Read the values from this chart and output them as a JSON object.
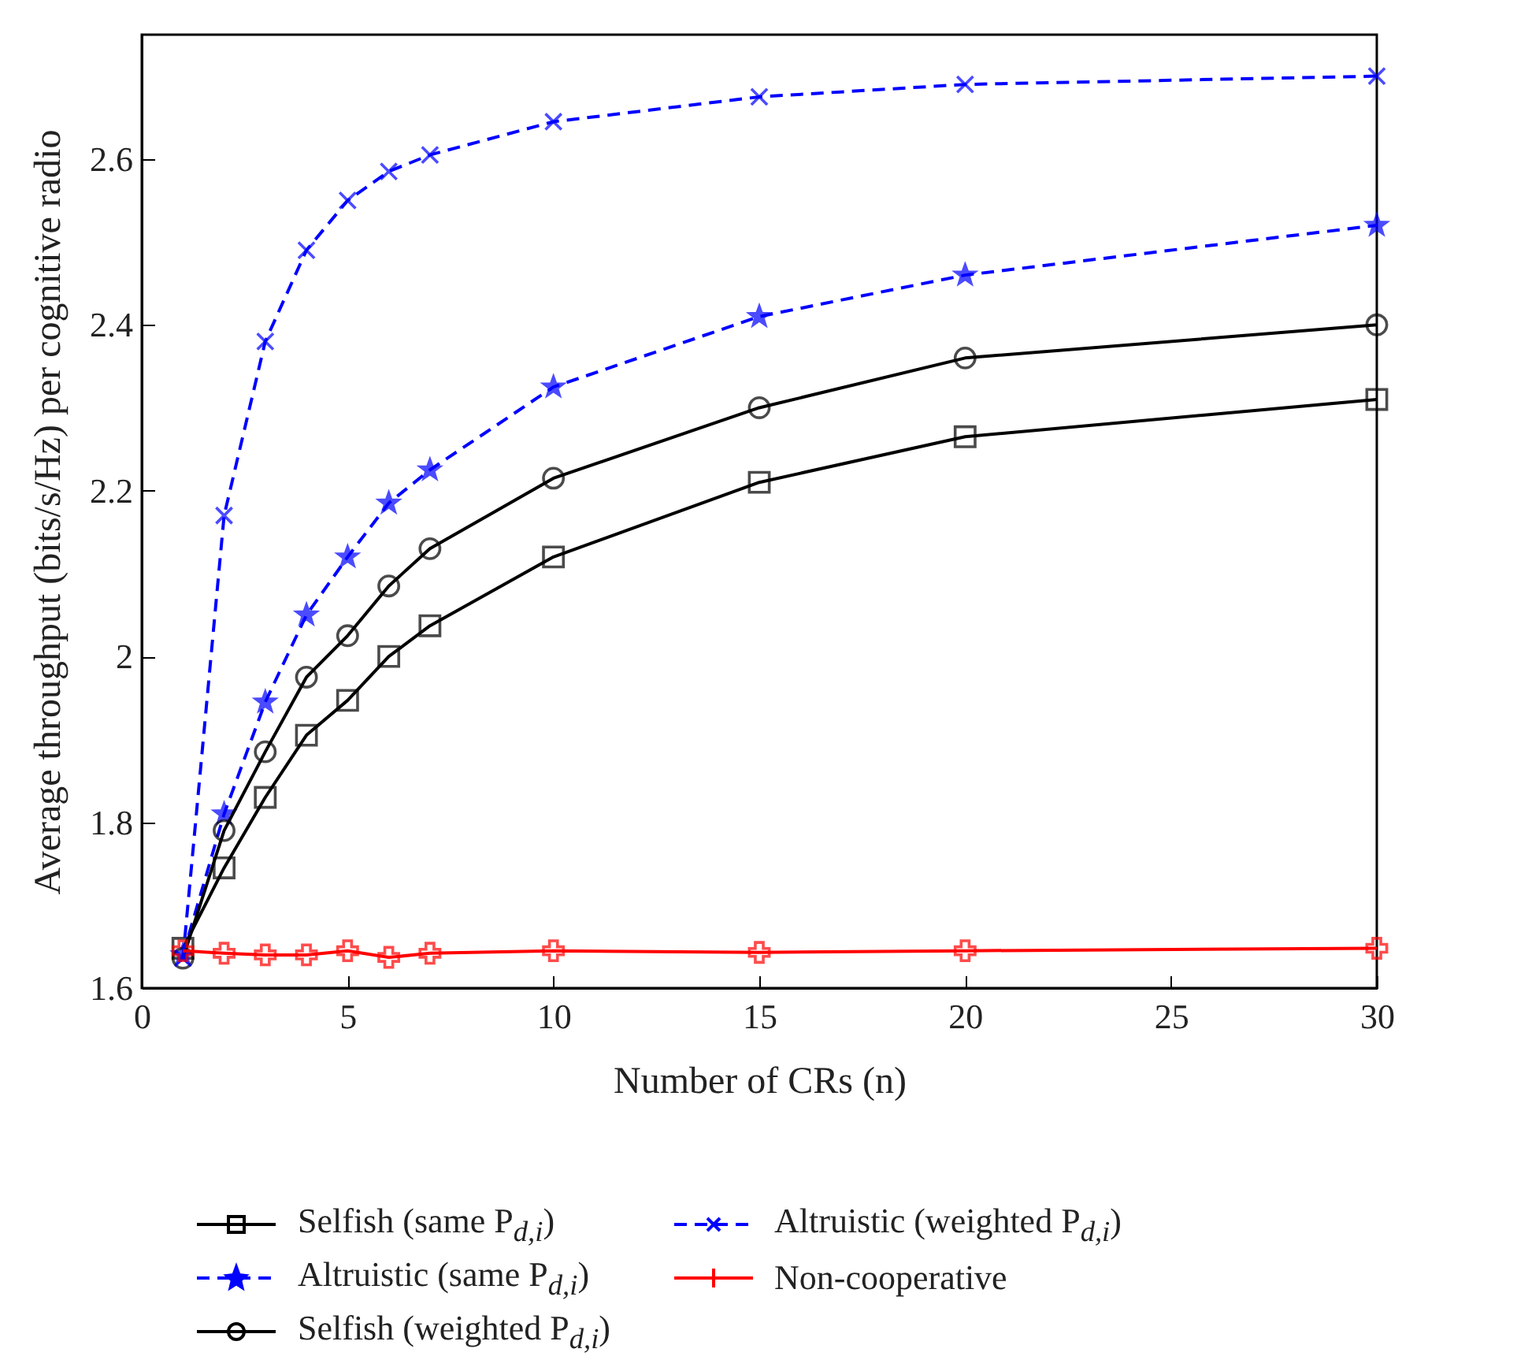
{
  "chart_data": {
    "type": "line",
    "xlabel": "Number of CRs (n)",
    "ylabel": "Average throughput (bits/s/Hz) per cognitive radio",
    "x": [
      1,
      2,
      3,
      4,
      5,
      6,
      7,
      10,
      15,
      20,
      30
    ],
    "xlim": [
      0,
      30
    ],
    "xticks": [
      0,
      5,
      10,
      15,
      20,
      25,
      30
    ],
    "ylim": [
      1.6,
      2.75
    ],
    "yticks": [
      1.6,
      1.8,
      2,
      2.2,
      2.4,
      2.6
    ],
    "grid": false,
    "legend": "bottom",
    "series": [
      {
        "name": "Selfish (same P$_{d,i}$)",
        "color": "#000000",
        "marker": "square",
        "line_style": "solid",
        "values": [
          1.648,
          1.745,
          1.83,
          1.905,
          1.947,
          2.0,
          2.037,
          2.12,
          2.21,
          2.265,
          2.31
        ]
      },
      {
        "name": "Altruistic (same P$_{d,i}$)",
        "color": "#0000ff",
        "marker": "star",
        "line_style": "dashed",
        "values": [
          1.64,
          1.81,
          1.945,
          2.05,
          2.12,
          2.185,
          2.225,
          2.325,
          2.41,
          2.46,
          2.52
        ]
      },
      {
        "name": "Selfish (weighted P$_{d,i}$)",
        "color": "#000000",
        "marker": "circle",
        "line_style": "solid",
        "values": [
          1.636,
          1.79,
          1.885,
          1.975,
          2.025,
          2.085,
          2.13,
          2.215,
          2.3,
          2.36,
          2.4
        ]
      },
      {
        "name": "Altruistic (weighted P$_{d,i}$)",
        "color": "#0000ff",
        "marker": "x",
        "line_style": "dashed",
        "values": [
          1.636,
          2.17,
          2.38,
          2.49,
          2.55,
          2.585,
          2.605,
          2.645,
          2.675,
          2.69,
          2.7
        ]
      },
      {
        "name": "Non-cooperative",
        "color": "#ff0000",
        "marker": "cross",
        "line_style": "solid",
        "values": [
          1.645,
          1.642,
          1.64,
          1.64,
          1.645,
          1.637,
          1.642,
          1.645,
          1.643,
          1.645,
          1.648
        ]
      }
    ]
  }
}
